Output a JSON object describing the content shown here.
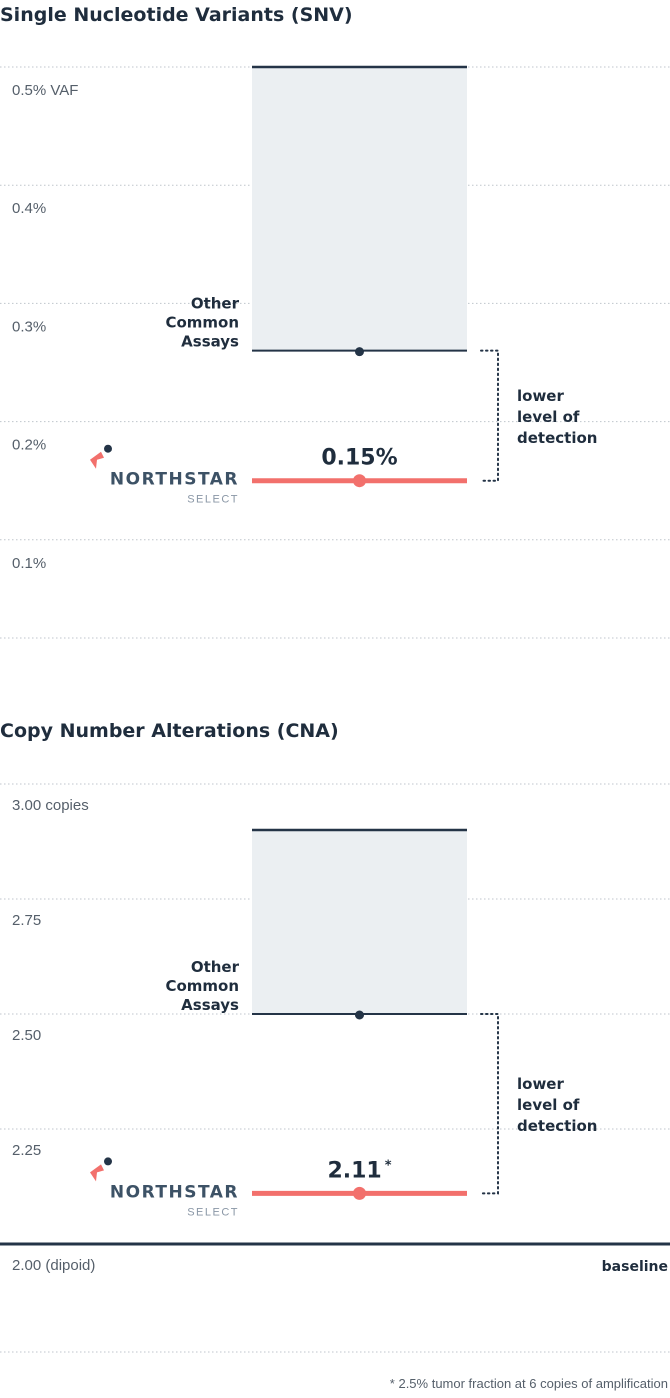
{
  "chart_data": [
    {
      "type": "range",
      "title": "Single Nucleotide Variants (SNV)",
      "yticks": [
        {
          "value": 0.5,
          "label": "0.5% VAF"
        },
        {
          "value": 0.4,
          "label": "0.4%"
        },
        {
          "value": 0.3,
          "label": "0.3%"
        },
        {
          "value": 0.2,
          "label": "0.2%"
        },
        {
          "value": 0.1,
          "label": "0.1%"
        }
      ],
      "other_assays": {
        "label_lines": [
          "Other",
          "Common",
          "Assays"
        ],
        "high": 0.5,
        "low": 0.26
      },
      "northstar": {
        "value": 0.15,
        "value_label": "0.15%",
        "brand": "NORTHSTAR",
        "sub": "SELECT",
        "footnote_marker": ""
      },
      "annotation": [
        "lower",
        "level of",
        "detection"
      ],
      "baseline_label": "",
      "colors": {
        "range_fill": "#ebeff2",
        "range_line": "#243447",
        "northstar": "#f2706c",
        "grid": "#bfc5cc"
      }
    },
    {
      "type": "range",
      "title": "Copy Number Alterations (CNA)",
      "yticks": [
        {
          "value": 3.0,
          "label": "3.00 copies"
        },
        {
          "value": 2.75,
          "label": "2.75"
        },
        {
          "value": 2.5,
          "label": "2.50"
        },
        {
          "value": 2.25,
          "label": "2.25"
        },
        {
          "value": 2.0,
          "label": "2.00 (dipoid)"
        }
      ],
      "other_assays": {
        "label_lines": [
          "Other",
          "Common",
          "Assays"
        ],
        "high": 2.9,
        "low": 2.5
      },
      "northstar": {
        "value": 2.11,
        "value_label": "2.11",
        "brand": "NORTHSTAR",
        "sub": "SELECT",
        "footnote_marker": "*"
      },
      "annotation": [
        "lower",
        "level of",
        "detection"
      ],
      "baseline_label": "baseline",
      "colors": {
        "range_fill": "#ebeff2",
        "range_line": "#243447",
        "northstar": "#f2706c",
        "grid": "#bfc5cc"
      }
    }
  ],
  "footnote": "* 2.5% tumor fraction at 6 copies of amplification"
}
